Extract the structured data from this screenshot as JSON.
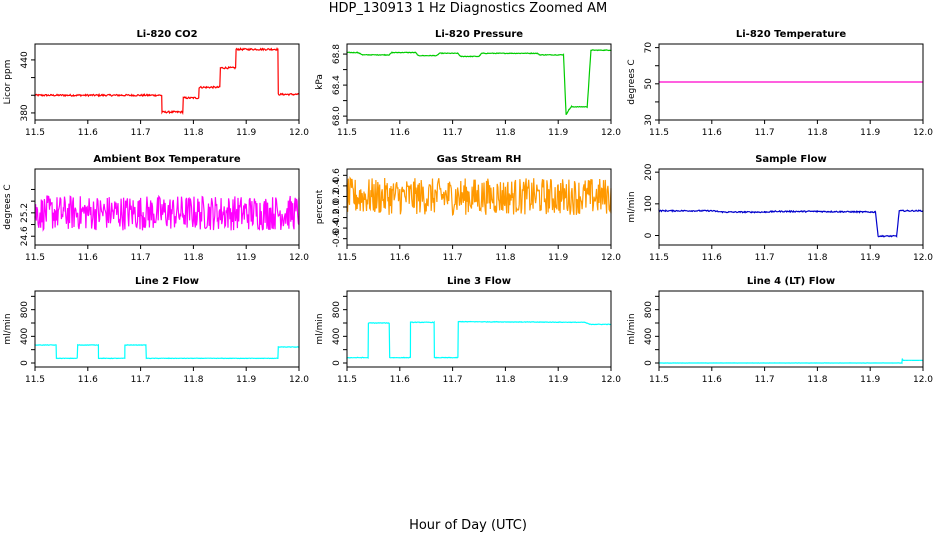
{
  "page": {
    "title": "HDP_130913  1 Hz Diagnostics Zoomed AM",
    "xlabel": "Hour of Day (UTC)"
  },
  "chart_data": [
    {
      "type": "line",
      "title": "Li-820 CO2",
      "ylabel": "Licor ppm",
      "color": "#ff0000",
      "xlim": [
        11.5,
        12.0
      ],
      "ylim": [
        372,
        458
      ],
      "xticks": [
        11.5,
        11.6,
        11.7,
        11.8,
        11.9,
        12.0
      ],
      "yticks": [
        380,
        400,
        420,
        440
      ],
      "yticklabels": [
        "380",
        "",
        "",
        "440"
      ],
      "points": [
        [
          11.5,
          400
        ],
        [
          11.74,
          400
        ],
        [
          11.74,
          381
        ],
        [
          11.78,
          381
        ],
        [
          11.78,
          397
        ],
        [
          11.81,
          397
        ],
        [
          11.81,
          409
        ],
        [
          11.85,
          409
        ],
        [
          11.85,
          431
        ],
        [
          11.88,
          431
        ],
        [
          11.88,
          452
        ],
        [
          11.96,
          452
        ],
        [
          11.96,
          401
        ],
        [
          12.0,
          401
        ]
      ],
      "noise": 1
    },
    {
      "type": "line",
      "title": "Li-820 Pressure",
      "ylabel": "kPa",
      "color": "#00cc00",
      "xlim": [
        11.5,
        12.0
      ],
      "ylim": [
        67.95,
        68.93
      ],
      "xticks": [
        11.5,
        11.6,
        11.7,
        11.8,
        11.9,
        12.0
      ],
      "yticks": [
        68.0,
        68.2,
        68.4,
        68.6,
        68.8
      ],
      "yticklabels": [
        "68.0",
        "",
        "68.4",
        "",
        "68.8"
      ],
      "points": [
        [
          11.5,
          68.82
        ],
        [
          11.52,
          68.82
        ],
        [
          11.53,
          68.79
        ],
        [
          11.58,
          68.79
        ],
        [
          11.585,
          68.82
        ],
        [
          11.63,
          68.82
        ],
        [
          11.635,
          68.78
        ],
        [
          11.67,
          68.78
        ],
        [
          11.675,
          68.81
        ],
        [
          11.71,
          68.81
        ],
        [
          11.715,
          68.77
        ],
        [
          11.75,
          68.77
        ],
        [
          11.755,
          68.81
        ],
        [
          11.86,
          68.81
        ],
        [
          11.865,
          68.79
        ],
        [
          11.91,
          68.79
        ],
        [
          11.915,
          68.02
        ],
        [
          11.92,
          68.08
        ],
        [
          11.925,
          68.12
        ],
        [
          11.955,
          68.12
        ],
        [
          11.962,
          68.85
        ],
        [
          12.0,
          68.85
        ]
      ],
      "noise": 0.004
    },
    {
      "type": "line",
      "title": "Li-820 Temperature",
      "ylabel": "degrees C",
      "color": "#ff00cc",
      "xlim": [
        11.5,
        12.0
      ],
      "ylim": [
        30,
        72
      ],
      "xticks": [
        11.5,
        11.6,
        11.7,
        11.8,
        11.9,
        12.0
      ],
      "yticks": [
        30,
        40,
        50,
        60,
        70
      ],
      "yticklabels": [
        "30",
        "",
        "50",
        "",
        "70"
      ],
      "points": [
        [
          11.5,
          51
        ],
        [
          12.0,
          51
        ]
      ],
      "noise": 0
    },
    {
      "type": "line",
      "title": "Ambient Box Temperature",
      "ylabel": "degrees C",
      "color": "#ff00ff",
      "xlim": [
        11.5,
        12.0
      ],
      "ylim": [
        24.45,
        25.75
      ],
      "xticks": [
        11.5,
        11.6,
        11.7,
        11.8,
        11.9,
        12.0
      ],
      "yticks": [
        24.6,
        24.8,
        25.0,
        25.2,
        25.4
      ],
      "yticklabels": [
        "24.6",
        "",
        "25.2",
        "",
        ""
      ],
      "points": [
        [
          11.5,
          25.0
        ],
        [
          12.0,
          25.0
        ]
      ],
      "noise": 0.3
    },
    {
      "type": "line",
      "title": "Gas Stream RH",
      "ylabel": "percent",
      "color": "#ff9900",
      "xlim": [
        11.5,
        12.0
      ],
      "ylim": [
        -0.72,
        0.72
      ],
      "xticks": [
        11.5,
        11.6,
        11.7,
        11.8,
        11.9,
        12.0
      ],
      "yticks": [
        -0.6,
        -0.4,
        -0.2,
        0.0,
        0.2,
        0.4,
        0.6
      ],
      "yticklabels": [
        "-0.6",
        "-0.4",
        "-0.2",
        "0.0",
        "0.2",
        "0.4",
        "0.6"
      ],
      "points": [
        [
          11.5,
          0.2
        ],
        [
          12.0,
          0.2
        ]
      ],
      "noise": 0.35
    },
    {
      "type": "line",
      "title": "Sample Flow",
      "ylabel": "ml/min",
      "color": "#0000cc",
      "xlim": [
        11.5,
        12.0
      ],
      "ylim": [
        -30,
        210
      ],
      "xticks": [
        11.5,
        11.6,
        11.7,
        11.8,
        11.9,
        12.0
      ],
      "yticks": [
        0,
        100,
        200
      ],
      "yticklabels": [
        "0",
        "100",
        "200"
      ],
      "points": [
        [
          11.5,
          78
        ],
        [
          11.6,
          78
        ],
        [
          11.62,
          74
        ],
        [
          11.7,
          74
        ],
        [
          11.72,
          76
        ],
        [
          11.8,
          76
        ],
        [
          11.91,
          74
        ],
        [
          11.915,
          -2
        ],
        [
          11.95,
          -2
        ],
        [
          11.955,
          78
        ],
        [
          12.0,
          78
        ]
      ],
      "noise": 2
    },
    {
      "type": "line",
      "title": "Line 2 Flow",
      "ylabel": "ml/min",
      "color": "#00ffff",
      "xlim": [
        11.5,
        12.0
      ],
      "ylim": [
        -60,
        1080
      ],
      "xticks": [
        11.5,
        11.6,
        11.7,
        11.8,
        11.9,
        12.0
      ],
      "yticks": [
        0,
        200,
        400,
        600,
        800,
        1000
      ],
      "yticklabels": [
        "0",
        "",
        "400",
        "",
        "800",
        ""
      ],
      "points": [
        [
          11.5,
          270
        ],
        [
          11.54,
          270
        ],
        [
          11.54,
          70
        ],
        [
          11.58,
          70
        ],
        [
          11.58,
          270
        ],
        [
          11.62,
          270
        ],
        [
          11.62,
          70
        ],
        [
          11.67,
          70
        ],
        [
          11.67,
          270
        ],
        [
          11.71,
          270
        ],
        [
          11.71,
          70
        ],
        [
          11.96,
          70
        ],
        [
          11.96,
          240
        ],
        [
          12.0,
          240
        ]
      ],
      "noise": 3
    },
    {
      "type": "line",
      "title": "Line 3 Flow",
      "ylabel": "ml/min",
      "color": "#00ffff",
      "xlim": [
        11.5,
        12.0
      ],
      "ylim": [
        -60,
        1080
      ],
      "xticks": [
        11.5,
        11.6,
        11.7,
        11.8,
        11.9,
        12.0
      ],
      "yticks": [
        0,
        200,
        400,
        600,
        800,
        1000
      ],
      "yticklabels": [
        "0",
        "",
        "400",
        "",
        "800",
        ""
      ],
      "points": [
        [
          11.5,
          80
        ],
        [
          11.54,
          80
        ],
        [
          11.54,
          600
        ],
        [
          11.58,
          600
        ],
        [
          11.58,
          80
        ],
        [
          11.62,
          80
        ],
        [
          11.62,
          610
        ],
        [
          11.665,
          610
        ],
        [
          11.665,
          80
        ],
        [
          11.71,
          80
        ],
        [
          11.71,
          620
        ],
        [
          11.95,
          610
        ],
        [
          11.96,
          580
        ],
        [
          12.0,
          580
        ]
      ],
      "noise": 4
    },
    {
      "type": "line",
      "title": "Line 4 (LT) Flow",
      "ylabel": "ml/min",
      "color": "#00ffff",
      "xlim": [
        11.5,
        12.0
      ],
      "ylim": [
        -60,
        1080
      ],
      "xticks": [
        11.5,
        11.6,
        11.7,
        11.8,
        11.9,
        12.0
      ],
      "yticks": [
        0,
        200,
        400,
        600,
        800,
        1000
      ],
      "yticklabels": [
        "0",
        "",
        "400",
        "",
        "800",
        ""
      ],
      "points": [
        [
          11.5,
          0
        ],
        [
          11.96,
          0
        ],
        [
          11.96,
          80
        ],
        [
          11.962,
          40
        ],
        [
          12.0,
          40
        ]
      ],
      "noise": 1
    }
  ]
}
